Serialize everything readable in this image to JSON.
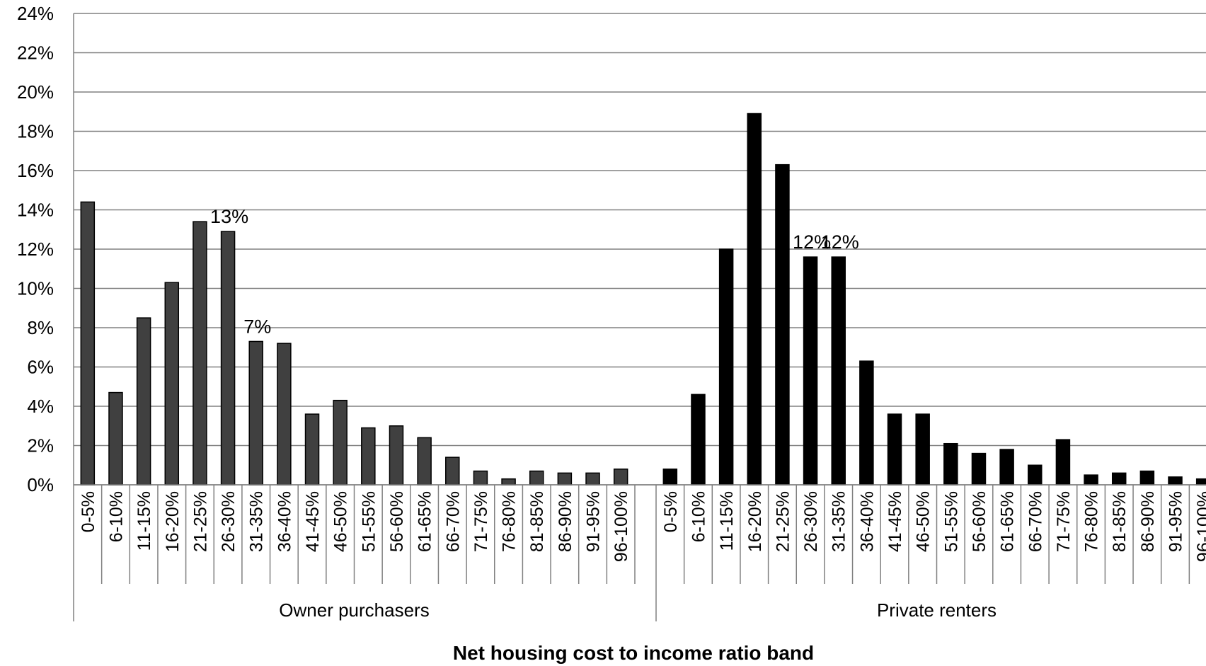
{
  "chart_data": {
    "type": "bar",
    "xlabel": "Net housing cost to income ratio band",
    "ylabel": "",
    "ylim": [
      0,
      24
    ],
    "y_ticks": [
      0,
      2,
      4,
      6,
      8,
      10,
      12,
      14,
      16,
      18,
      20,
      22,
      24
    ],
    "y_tick_suffix": "%",
    "grid": true,
    "legend": "none",
    "categories": [
      "0-5%",
      "6-10%",
      "11-15%",
      "16-20%",
      "21-25%",
      "26-30%",
      "31-35%",
      "36-40%",
      "41-45%",
      "46-50%",
      "51-55%",
      "56-60%",
      "61-65%",
      "66-70%",
      "71-75%",
      "76-80%",
      "81-85%",
      "86-90%",
      "91-95%",
      "96-100%"
    ],
    "series": [
      {
        "name": "Owner purchasers",
        "color": "#404040",
        "values": [
          14.4,
          4.7,
          8.5,
          10.3,
          13.4,
          12.9,
          7.3,
          7.2,
          3.6,
          4.3,
          2.9,
          3.0,
          2.4,
          1.4,
          0.7,
          0.3,
          0.7,
          0.6,
          0.6,
          0.8
        ],
        "annotations": [
          {
            "index": 5,
            "text": "13%"
          },
          {
            "index": 6,
            "text": "7%"
          }
        ]
      },
      {
        "name": "Private renters",
        "color": "#000000",
        "values": [
          0.8,
          4.6,
          12.0,
          18.9,
          16.3,
          11.6,
          11.6,
          6.3,
          3.6,
          3.6,
          2.1,
          1.6,
          1.8,
          1.0,
          2.3,
          0.5,
          0.6,
          0.7,
          0.4,
          0.3
        ],
        "annotations": [
          {
            "index": 5,
            "text": "12%"
          },
          {
            "index": 6,
            "text": "12%"
          }
        ]
      }
    ]
  }
}
